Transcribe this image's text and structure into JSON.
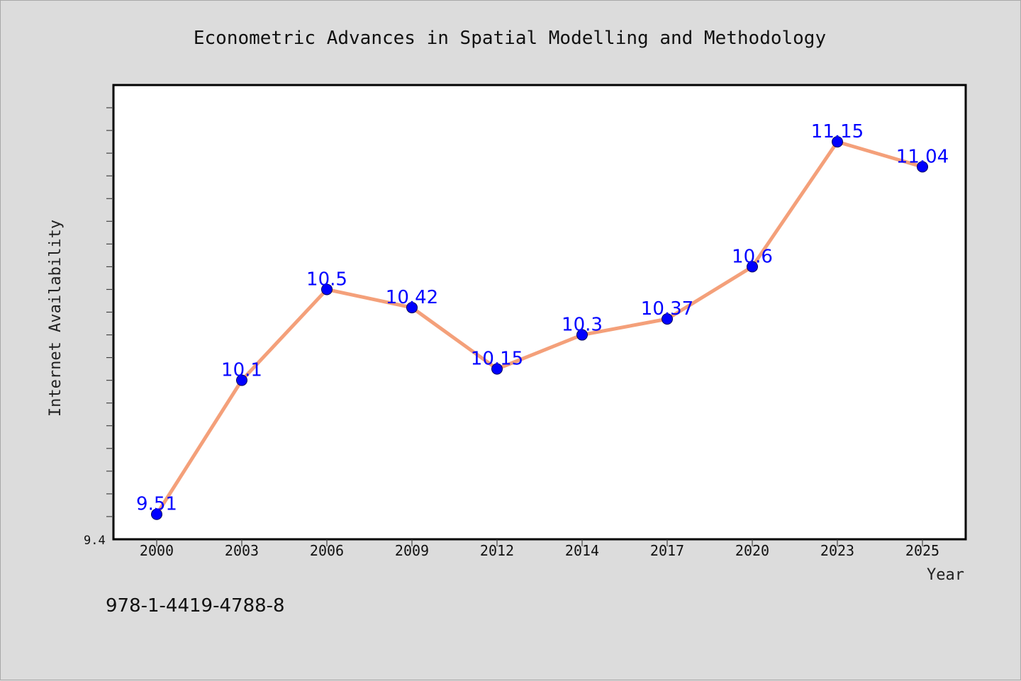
{
  "figure": {
    "isbn": "978-1-4419-4788-8"
  },
  "chart_data": {
    "type": "line",
    "title": "Econometric Advances in Spatial Modelling and Methodology",
    "xlabel": "Year",
    "ylabel": "Internet Availability",
    "ylim": [
      9.4,
      11.4
    ],
    "y_axis_min_label": "9.4",
    "categories": [
      "2000",
      "2003",
      "2006",
      "2009",
      "2012",
      "2014",
      "2017",
      "2020",
      "2023",
      "2025"
    ],
    "series": [
      {
        "values": [
          9.51,
          10.1,
          10.5,
          10.42,
          10.15,
          10.3,
          10.37,
          10.6,
          11.15,
          11.04
        ],
        "line_color": "#f4a07a",
        "marker_color": "#0000ff",
        "label_color": "#0000ff"
      }
    ],
    "data_labels": [
      "9.51",
      "10.1",
      "10.5",
      "10.42",
      "10.15",
      "10.3",
      "10.37",
      "10.6",
      "11.15",
      "11.04"
    ],
    "grid": false,
    "plot_background": "#ffffff",
    "figure_background": "#dcdcdc"
  }
}
